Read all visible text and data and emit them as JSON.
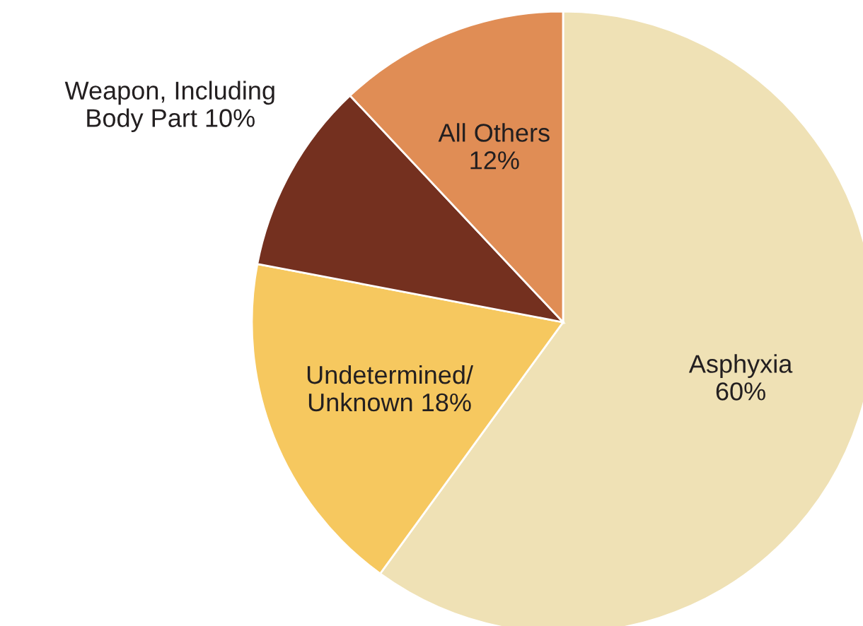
{
  "chart_data": {
    "type": "pie",
    "categories": [
      "Asphyxia",
      "Undetermined/\nUnknown",
      "Weapon, Including\nBody Part",
      "All Others"
    ],
    "values": [
      60,
      18,
      10,
      12
    ],
    "value_labels": [
      "60%",
      "18%",
      "10%",
      "12%"
    ],
    "colors": [
      "#efe1b5",
      "#f6c85f",
      "#74301f",
      "#e08d55"
    ]
  }
}
